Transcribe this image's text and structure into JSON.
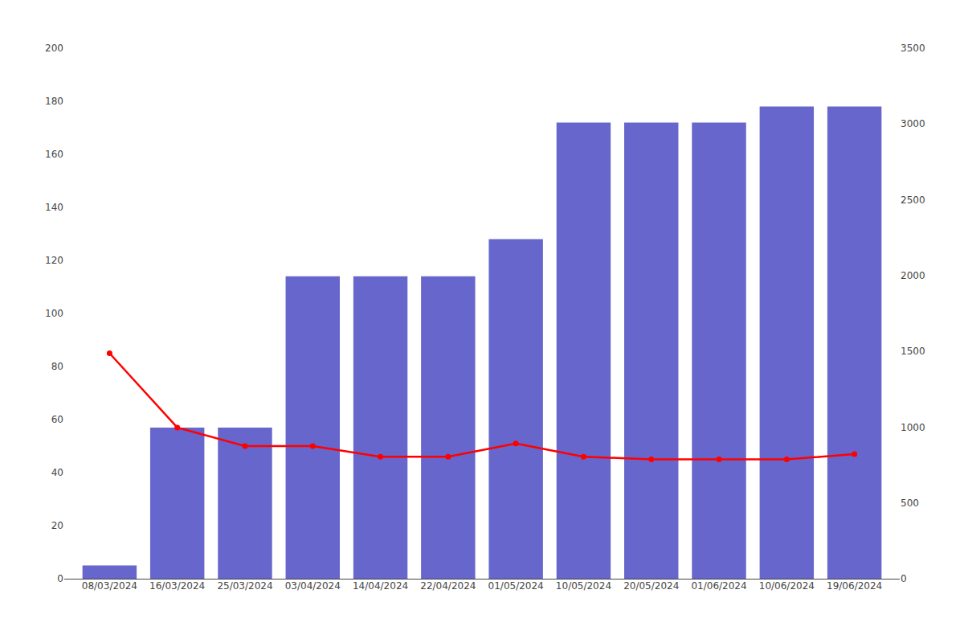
{
  "chart_data": {
    "type": "bar",
    "categories": [
      "08/03/2024",
      "16/03/2024",
      "25/03/2024",
      "03/04/2024",
      "14/04/2024",
      "22/04/2024",
      "01/05/2024",
      "10/05/2024",
      "20/05/2024",
      "01/06/2024",
      "10/06/2024",
      "19/06/2024"
    ],
    "series": [
      {
        "type": "bar",
        "color": "#6666cc",
        "values": [
          5,
          57,
          57,
          114,
          114,
          114,
          128,
          172,
          172,
          172,
          178,
          178
        ]
      },
      {
        "type": "line",
        "color": "#ff0000",
        "marker": "circle",
        "values": [
          85,
          57,
          50,
          50,
          46,
          46,
          51,
          46,
          45,
          45,
          45,
          47
        ]
      }
    ],
    "ylim": [
      0,
      200
    ],
    "yticks": [
      0,
      20,
      40,
      60,
      80,
      100,
      120,
      140,
      160,
      180,
      200
    ],
    "y2lim": [
      0,
      3500
    ],
    "y2ticks": [
      0,
      500,
      1000,
      1500,
      2000,
      2500,
      3000,
      3500
    ],
    "grid": false
  }
}
